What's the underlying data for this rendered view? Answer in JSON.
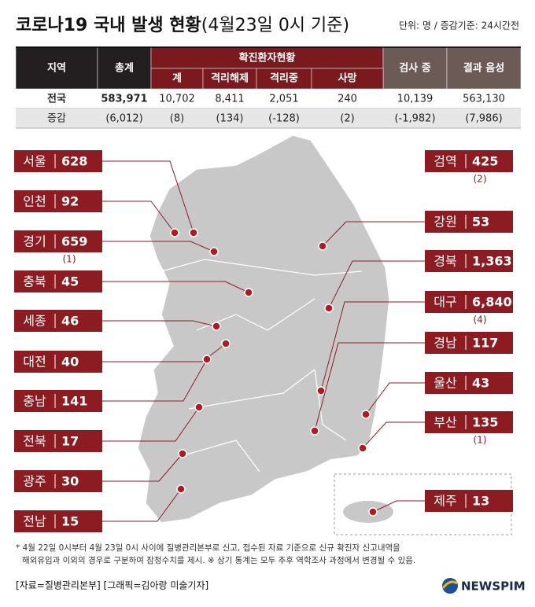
{
  "header": {
    "title": "코로나19 국내 발생 현황",
    "title_date": "(4월23일 0시 기준)",
    "unit": "단위: 명 / 증감기준: 24시간전"
  },
  "table": {
    "header": [
      "지역",
      "총계",
      "확진환자현황",
      "검사 중",
      "결과 음성"
    ],
    "subheader": [
      "계",
      "격리해제",
      "격리중",
      "사망"
    ],
    "rows": [
      [
        "전국",
        "583,971",
        "10,702",
        "8,411",
        "2,051",
        "240",
        "10,139",
        "563,130"
      ],
      [
        "증감",
        "(6,012)",
        "(8)",
        "(134)",
        "(-128)",
        "(2)",
        "(-1,982)",
        "(7,986)"
      ]
    ]
  },
  "regions": [
    {
      "name": "서울",
      "value": "628"
    },
    {
      "name": "인천",
      "value": "92"
    },
    {
      "name": "경기",
      "value": "659",
      "change": "(1)"
    },
    {
      "name": "충북",
      "value": "45"
    },
    {
      "name": "세종",
      "value": "46"
    },
    {
      "name": "대전",
      "value": "40"
    },
    {
      "name": "충남",
      "value": "141"
    },
    {
      "name": "전북",
      "value": "17"
    },
    {
      "name": "광주",
      "value": "30"
    },
    {
      "name": "전남",
      "value": "15"
    },
    {
      "name": "검역",
      "value": "425",
      "change": "(2)"
    },
    {
      "name": "강원",
      "value": "53"
    },
    {
      "name": "경북",
      "value": "1,363"
    },
    {
      "name": "대구",
      "value": "6,840",
      "change": "(4)"
    },
    {
      "name": "경남",
      "value": "117"
    },
    {
      "name": "울산",
      "value": "43"
    },
    {
      "name": "부산",
      "value": "135",
      "change": "(1)"
    },
    {
      "name": "제주",
      "value": "13"
    }
  ],
  "footnote": [
    "* 4월 22일 0시부터 4월 23일 0시 사이에 질병관리본부로 신고, 접수된 자료 기준으로 신규 확진자 신고내역을",
    "해외유입과 이외의 경우로 구분하여 잠정수치를 제시. ※ 상기 통계는 모두 추후 역학조사 과정에서 변경될 수 있음."
  ],
  "source": "[자료=질병관리본부] [그래픽=김아랑 미술기자]",
  "logo": "NEWSPIM"
}
